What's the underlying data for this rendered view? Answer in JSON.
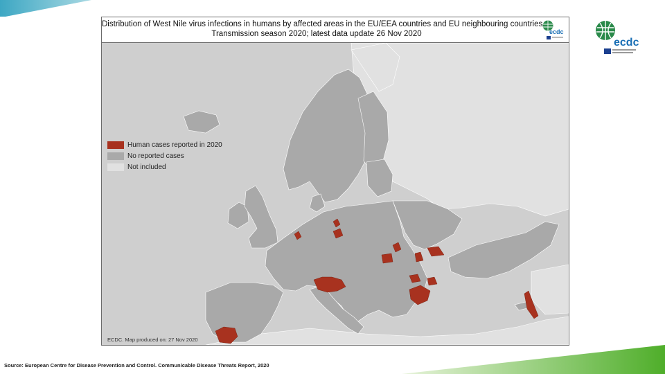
{
  "map": {
    "title_line1": "Distribution of West Nile virus infections in humans by affected areas in the EU/EEA countries and EU neighbouring countries",
    "title_line2": "Transmission season 2020; latest data update 26 Nov 2020",
    "credit": "ECDC. Map produced on: 27 Nov 2020",
    "legend": [
      {
        "label": "Human cases reported in 2020",
        "color": "#a8321f"
      },
      {
        "label": "No reported cases",
        "color": "#a9a9a9"
      },
      {
        "label": "Not included",
        "color": "#e1e1e1"
      }
    ],
    "background_color": "#cfcfcf"
  },
  "logo": {
    "text": "ecdc",
    "colors": {
      "globe": "#2a8a4a",
      "text": "#1a6fb5",
      "flag": "#1b3f8f"
    }
  },
  "source": "Source: European Centre for Disease Prevention and Control. Communicable Disease Threats Report, 2020",
  "decor": {
    "top_bar_color": "#4fb0c6",
    "bottom_bar_color": "#5bb030"
  }
}
